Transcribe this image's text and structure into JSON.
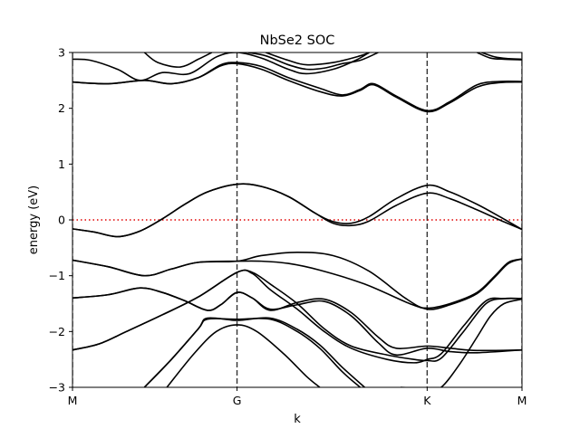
{
  "chart_data": {
    "type": "line",
    "title": "NbSe2 SOC",
    "xlabel": "k",
    "ylabel": "energy (eV)",
    "xlim": [
      0,
      1
    ],
    "ylim": [
      -3,
      3
    ],
    "yticks": [
      -3,
      -2,
      -1,
      0,
      1,
      2,
      3
    ],
    "yticklabels": [
      "−3",
      "−2",
      "−1",
      "0",
      "1",
      "2",
      "3"
    ],
    "kpoints": [
      {
        "label": "M",
        "x": 0.0
      },
      {
        "label": "G",
        "x": 0.366
      },
      {
        "label": "K",
        "x": 0.789
      },
      {
        "label": "M",
        "x": 1.0
      }
    ],
    "fermi_level": 0,
    "grid": false,
    "series": [
      {
        "values": [
          [
            0,
            -0.16
          ],
          [
            0.05,
            -0.22
          ],
          [
            0.1,
            -0.3
          ],
          [
            0.15,
            -0.2
          ],
          [
            0.2,
            0.02
          ],
          [
            0.25,
            0.28
          ],
          [
            0.3,
            0.5
          ],
          [
            0.366,
            0.64
          ],
          [
            0.42,
            0.6
          ],
          [
            0.48,
            0.42
          ],
          [
            0.54,
            0.12
          ],
          [
            0.58,
            -0.06
          ],
          [
            0.62,
            -0.1
          ],
          [
            0.66,
            -0.02
          ],
          [
            0.72,
            0.26
          ],
          [
            0.789,
            0.48
          ],
          [
            0.84,
            0.38
          ],
          [
            0.9,
            0.18
          ],
          [
            0.95,
            0.0
          ],
          [
            1.0,
            -0.17
          ]
        ]
      },
      {
        "values": [
          [
            0,
            -0.16
          ],
          [
            0.05,
            -0.22
          ],
          [
            0.1,
            -0.3
          ],
          [
            0.15,
            -0.2
          ],
          [
            0.2,
            0.02
          ],
          [
            0.25,
            0.28
          ],
          [
            0.3,
            0.5
          ],
          [
            0.366,
            0.64
          ],
          [
            0.42,
            0.6
          ],
          [
            0.48,
            0.42
          ],
          [
            0.54,
            0.12
          ],
          [
            0.58,
            -0.03
          ],
          [
            0.62,
            -0.06
          ],
          [
            0.66,
            0.06
          ],
          [
            0.72,
            0.38
          ],
          [
            0.789,
            0.62
          ],
          [
            0.84,
            0.5
          ],
          [
            0.9,
            0.28
          ],
          [
            0.95,
            0.06
          ],
          [
            1.0,
            -0.17
          ]
        ]
      },
      {
        "values": [
          [
            0,
            -0.72
          ],
          [
            0.08,
            -0.84
          ],
          [
            0.16,
            -1.0
          ],
          [
            0.22,
            -0.88
          ],
          [
            0.28,
            -0.76
          ],
          [
            0.366,
            -0.74
          ],
          [
            0.42,
            -0.74
          ],
          [
            0.48,
            -0.78
          ],
          [
            0.55,
            -0.9
          ],
          [
            0.65,
            -1.15
          ],
          [
            0.75,
            -1.5
          ],
          [
            0.789,
            -1.58
          ],
          [
            0.84,
            -1.5
          ],
          [
            0.9,
            -1.3
          ],
          [
            0.94,
            -1.0
          ],
          [
            0.97,
            -0.76
          ],
          [
            1.0,
            -0.7
          ]
        ]
      },
      {
        "values": [
          [
            0,
            -0.72
          ],
          [
            0.08,
            -0.84
          ],
          [
            0.16,
            -1.0
          ],
          [
            0.22,
            -0.88
          ],
          [
            0.28,
            -0.76
          ],
          [
            0.366,
            -0.74
          ],
          [
            0.42,
            -0.64
          ],
          [
            0.5,
            -0.58
          ],
          [
            0.58,
            -0.64
          ],
          [
            0.66,
            -0.92
          ],
          [
            0.74,
            -1.4
          ],
          [
            0.789,
            -1.6
          ],
          [
            0.84,
            -1.52
          ],
          [
            0.9,
            -1.32
          ],
          [
            0.94,
            -1.02
          ],
          [
            0.97,
            -0.78
          ],
          [
            1.0,
            -0.7
          ]
        ]
      },
      {
        "values": [
          [
            0,
            -1.4
          ],
          [
            0.08,
            -1.34
          ],
          [
            0.15,
            -1.22
          ],
          [
            0.2,
            -1.3
          ],
          [
            0.25,
            -1.45
          ],
          [
            0.3,
            -1.62
          ],
          [
            0.33,
            -1.52
          ],
          [
            0.366,
            -1.3
          ],
          [
            0.4,
            -1.4
          ],
          [
            0.44,
            -1.6
          ],
          [
            0.5,
            -1.52
          ],
          [
            0.56,
            -1.46
          ],
          [
            0.62,
            -1.72
          ],
          [
            0.68,
            -2.2
          ],
          [
            0.72,
            -2.42
          ],
          [
            0.789,
            -2.3
          ],
          [
            0.84,
            -2.36
          ],
          [
            0.9,
            -2.38
          ],
          [
            1.0,
            -2.33
          ]
        ]
      },
      {
        "values": [
          [
            0,
            -1.4
          ],
          [
            0.08,
            -1.34
          ],
          [
            0.15,
            -1.22
          ],
          [
            0.2,
            -1.3
          ],
          [
            0.25,
            -1.45
          ],
          [
            0.3,
            -1.62
          ],
          [
            0.33,
            -1.52
          ],
          [
            0.366,
            -1.3
          ],
          [
            0.4,
            -1.4
          ],
          [
            0.44,
            -1.62
          ],
          [
            0.5,
            -1.48
          ],
          [
            0.56,
            -1.42
          ],
          [
            0.62,
            -1.66
          ],
          [
            0.68,
            -2.1
          ],
          [
            0.72,
            -2.3
          ],
          [
            0.789,
            -2.26
          ],
          [
            0.84,
            -2.3
          ],
          [
            0.9,
            -2.34
          ],
          [
            1.0,
            -2.33
          ]
        ]
      },
      {
        "values": [
          [
            0,
            -2.33
          ],
          [
            0.06,
            -2.22
          ],
          [
            0.12,
            -2.0
          ],
          [
            0.2,
            -1.7
          ],
          [
            0.28,
            -1.38
          ],
          [
            0.366,
            -0.94
          ],
          [
            0.4,
            -0.96
          ],
          [
            0.44,
            -1.25
          ],
          [
            0.5,
            -1.6
          ],
          [
            0.56,
            -2.0
          ],
          [
            0.62,
            -2.3
          ],
          [
            0.7,
            -2.5
          ],
          [
            0.76,
            -2.56
          ],
          [
            0.789,
            -2.5
          ],
          [
            0.82,
            -2.4
          ],
          [
            0.87,
            -1.9
          ],
          [
            0.92,
            -1.45
          ],
          [
            0.96,
            -1.41
          ],
          [
            1.0,
            -1.41
          ]
        ]
      },
      {
        "values": [
          [
            0,
            -2.33
          ],
          [
            0.06,
            -2.22
          ],
          [
            0.12,
            -2.0
          ],
          [
            0.2,
            -1.7
          ],
          [
            0.28,
            -1.38
          ],
          [
            0.366,
            -0.94
          ],
          [
            0.4,
            -0.94
          ],
          [
            0.44,
            -1.15
          ],
          [
            0.5,
            -1.5
          ],
          [
            0.56,
            -1.95
          ],
          [
            0.62,
            -2.26
          ],
          [
            0.7,
            -2.42
          ],
          [
            0.76,
            -2.5
          ],
          [
            0.789,
            -2.52
          ],
          [
            0.82,
            -2.48
          ],
          [
            0.87,
            -2.0
          ],
          [
            0.92,
            -1.5
          ],
          [
            0.96,
            -1.41
          ],
          [
            1.0,
            -1.41
          ]
        ]
      },
      {
        "values": [
          [
            0.16,
            -3.0
          ],
          [
            0.22,
            -2.5
          ],
          [
            0.28,
            -1.95
          ],
          [
            0.3,
            -1.78
          ],
          [
            0.366,
            -1.78
          ],
          [
            0.44,
            -1.78
          ],
          [
            0.5,
            -2.0
          ],
          [
            0.55,
            -2.3
          ],
          [
            0.6,
            -2.72
          ],
          [
            0.64,
            -3.0
          ]
        ]
      },
      {
        "values": [
          [
            0.16,
            -3.0
          ],
          [
            0.22,
            -2.5
          ],
          [
            0.28,
            -1.95
          ],
          [
            0.3,
            -1.76
          ],
          [
            0.366,
            -1.8
          ],
          [
            0.44,
            -1.76
          ],
          [
            0.5,
            -1.96
          ],
          [
            0.55,
            -2.24
          ],
          [
            0.6,
            -2.64
          ],
          [
            0.65,
            -3.0
          ]
        ]
      },
      {
        "values": [
          [
            0.21,
            -3.0
          ],
          [
            0.27,
            -2.4
          ],
          [
            0.32,
            -2.0
          ],
          [
            0.366,
            -1.88
          ],
          [
            0.41,
            -2.0
          ],
          [
            0.47,
            -2.4
          ],
          [
            0.52,
            -2.8
          ],
          [
            0.55,
            -3.0
          ]
        ]
      },
      {
        "values": [
          [
            0.73,
            -3.0
          ],
          [
            0.789,
            -3.02
          ],
          [
            0.82,
            -3.0
          ],
          [
            0.86,
            -2.6
          ],
          [
            0.9,
            -2.1
          ],
          [
            0.93,
            -1.72
          ],
          [
            0.96,
            -1.5
          ],
          [
            1.0,
            -1.42
          ]
        ]
      },
      {
        "values": [
          [
            0,
            2.47
          ],
          [
            0.08,
            2.44
          ],
          [
            0.16,
            2.5
          ],
          [
            0.22,
            2.44
          ],
          [
            0.28,
            2.55
          ],
          [
            0.33,
            2.76
          ],
          [
            0.366,
            2.8
          ],
          [
            0.42,
            2.7
          ],
          [
            0.48,
            2.5
          ],
          [
            0.55,
            2.3
          ],
          [
            0.6,
            2.22
          ],
          [
            0.64,
            2.32
          ],
          [
            0.67,
            2.42
          ],
          [
            0.72,
            2.2
          ],
          [
            0.789,
            1.94
          ],
          [
            0.84,
            2.1
          ],
          [
            0.9,
            2.38
          ],
          [
            0.95,
            2.46
          ],
          [
            1.0,
            2.47
          ]
        ]
      },
      {
        "values": [
          [
            0,
            2.47
          ],
          [
            0.08,
            2.44
          ],
          [
            0.16,
            2.5
          ],
          [
            0.22,
            2.44
          ],
          [
            0.28,
            2.55
          ],
          [
            0.33,
            2.78
          ],
          [
            0.366,
            2.82
          ],
          [
            0.42,
            2.75
          ],
          [
            0.48,
            2.55
          ],
          [
            0.55,
            2.36
          ],
          [
            0.6,
            2.24
          ],
          [
            0.64,
            2.34
          ],
          [
            0.67,
            2.44
          ],
          [
            0.72,
            2.22
          ],
          [
            0.789,
            1.96
          ],
          [
            0.84,
            2.12
          ],
          [
            0.9,
            2.42
          ],
          [
            0.95,
            2.48
          ],
          [
            1.0,
            2.48
          ]
        ]
      },
      {
        "values": [
          [
            0,
            2.88
          ],
          [
            0.04,
            2.86
          ],
          [
            0.1,
            2.7
          ],
          [
            0.15,
            2.5
          ],
          [
            0.2,
            2.64
          ],
          [
            0.26,
            2.62
          ],
          [
            0.32,
            2.92
          ],
          [
            0.366,
            3.0
          ],
          [
            0.42,
            2.9
          ],
          [
            0.48,
            2.7
          ],
          [
            0.52,
            2.62
          ],
          [
            0.58,
            2.7
          ],
          [
            0.63,
            2.86
          ],
          [
            0.66,
            3.0
          ]
        ]
      },
      {
        "values": [
          [
            0.16,
            3.0
          ],
          [
            0.19,
            2.82
          ],
          [
            0.24,
            2.74
          ],
          [
            0.28,
            2.88
          ],
          [
            0.31,
            3.0
          ]
        ]
      },
      {
        "values": [
          [
            0.39,
            3.0
          ],
          [
            0.43,
            2.94
          ],
          [
            0.48,
            2.78
          ],
          [
            0.52,
            2.7
          ],
          [
            0.56,
            2.72
          ],
          [
            0.6,
            2.8
          ],
          [
            0.64,
            2.86
          ],
          [
            0.68,
            3.0
          ]
        ]
      },
      {
        "values": [
          [
            0.43,
            3.0
          ],
          [
            0.48,
            2.86
          ],
          [
            0.52,
            2.78
          ],
          [
            0.58,
            2.82
          ],
          [
            0.64,
            2.94
          ],
          [
            0.66,
            3.0
          ]
        ]
      },
      {
        "values": [
          [
            0.9,
            3.0
          ],
          [
            0.93,
            2.9
          ],
          [
            0.96,
            2.88
          ],
          [
            1.0,
            2.87
          ]
        ]
      },
      {
        "values": [
          [
            0.91,
            3.0
          ],
          [
            0.94,
            2.92
          ],
          [
            0.97,
            2.89
          ],
          [
            1.0,
            2.88
          ]
        ]
      }
    ]
  }
}
